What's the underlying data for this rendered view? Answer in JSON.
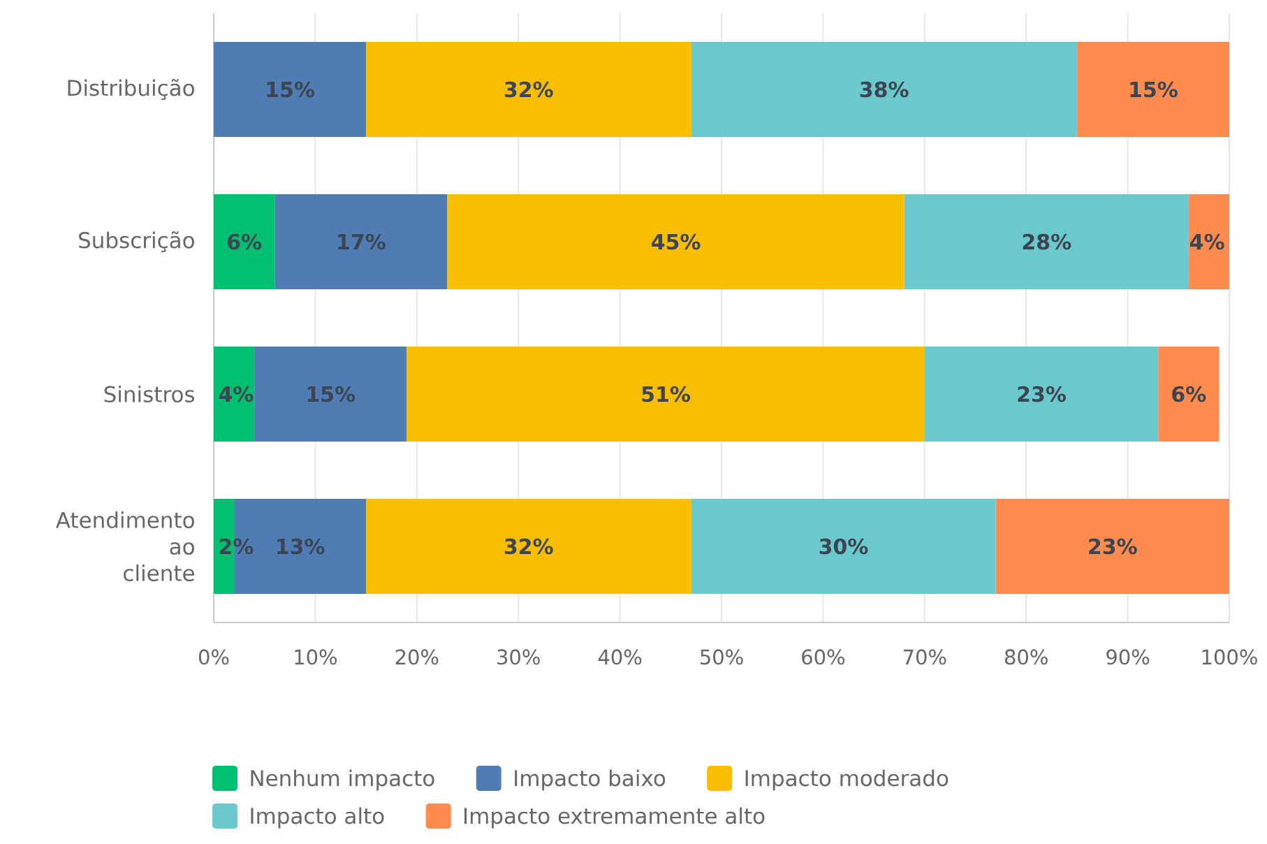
{
  "chart_data": {
    "type": "bar",
    "orientation": "horizontal",
    "stacked": true,
    "categories": [
      "Distribuição",
      "Subscrição",
      "Sinistros",
      "Atendimento ao cliente"
    ],
    "series": [
      {
        "name": "Nenhum impacto",
        "color": "#00bf6f",
        "values": [
          null,
          6,
          4,
          2
        ],
        "value_labels": [
          null,
          "6%",
          "4%",
          "2%"
        ]
      },
      {
        "name": "Impacto baixo",
        "color": "#507cb6",
        "values": [
          15,
          17,
          15,
          13
        ],
        "value_labels": [
          "15%",
          "17%",
          "15%",
          "13%"
        ]
      },
      {
        "name": "Impacto moderado",
        "color": "#f9be00",
        "values": [
          32,
          45,
          51,
          32
        ],
        "value_labels": [
          "32%",
          "45%",
          "51%",
          "32%"
        ]
      },
      {
        "name": "Impacto alto",
        "color": "#6bc8cd",
        "values": [
          38,
          28,
          23,
          30
        ],
        "value_labels": [
          "38%",
          "28%",
          "23%",
          "30%"
        ]
      },
      {
        "name": "Impacto extremamente alto",
        "color": "#ff8b4f",
        "values": [
          15,
          4,
          6,
          23
        ],
        "value_labels": [
          "15%",
          "4%",
          "6%",
          "23%"
        ]
      }
    ],
    "xlim": [
      0,
      100
    ],
    "xticks": [
      {
        "value": 0,
        "label": "0%"
      },
      {
        "value": 10,
        "label": "10%"
      },
      {
        "value": 20,
        "label": "20%"
      },
      {
        "value": 30,
        "label": "30%"
      },
      {
        "value": 40,
        "label": "40%"
      },
      {
        "value": 50,
        "label": "50%"
      },
      {
        "value": 60,
        "label": "60%"
      },
      {
        "value": 70,
        "label": "70%"
      },
      {
        "value": 80,
        "label": "80%"
      },
      {
        "value": 90,
        "label": "90%"
      },
      {
        "value": 100,
        "label": "100%"
      }
    ],
    "grid": "x",
    "legend": "bottom"
  }
}
